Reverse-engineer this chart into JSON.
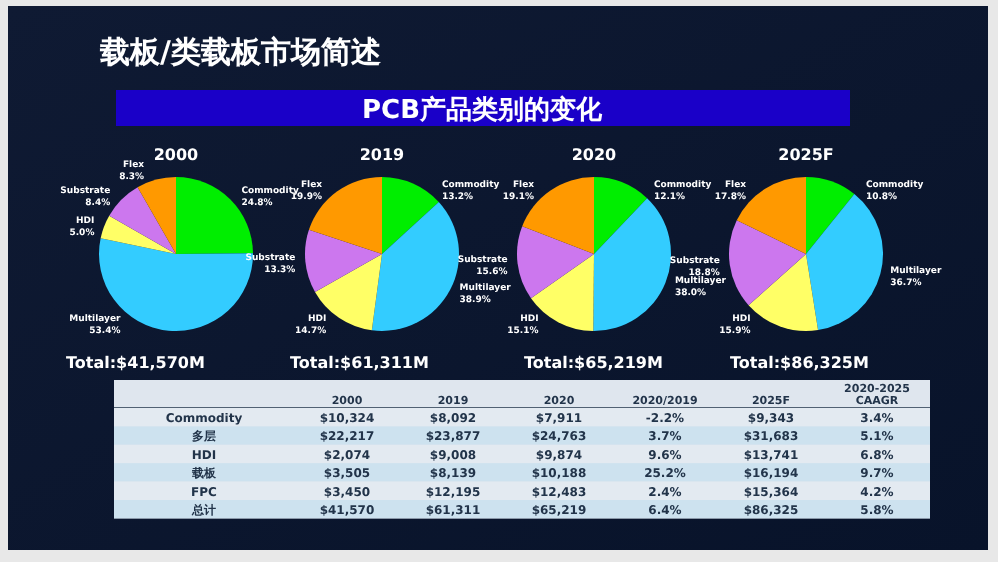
{
  "chart_data": [
    {
      "type": "other",
      "title": "载板/类载板市场简述",
      "subtitle": "PCB产品类别的变化"
    },
    {
      "type": "pie",
      "title": "2000",
      "categories": [
        "Commodity",
        "Multilayer",
        "HDI",
        "Substrate",
        "Flex"
      ],
      "values": [
        24.8,
        53.4,
        5.0,
        8.4,
        8.3
      ],
      "colors": [
        "#00ee00",
        "#33ccff",
        "#ffff66",
        "#cc77ee",
        "#ff9900"
      ],
      "value_labels": [
        "24.8%",
        "53.4%",
        "5.0%",
        "8.4%",
        "8.3%"
      ],
      "annotations": [
        "Total:$41,570M"
      ]
    },
    {
      "type": "pie",
      "title": "2019",
      "categories": [
        "Commodity",
        "Multilayer",
        "HDI",
        "Substrate",
        "Flex"
      ],
      "values": [
        13.2,
        38.9,
        14.7,
        13.3,
        19.9
      ],
      "colors": [
        "#00ee00",
        "#33ccff",
        "#ffff66",
        "#cc77ee",
        "#ff9900"
      ],
      "value_labels": [
        "13.2%",
        "38.9%",
        "14.7%",
        "13.3%",
        "19.9%"
      ],
      "annotations": [
        "Total:$61,311M"
      ]
    },
    {
      "type": "pie",
      "title": "2020",
      "categories": [
        "Commodity",
        "Multilayer",
        "HDI",
        "Substrate",
        "Flex"
      ],
      "values": [
        12.1,
        38.0,
        15.1,
        15.6,
        19.1
      ],
      "colors": [
        "#00ee00",
        "#33ccff",
        "#ffff66",
        "#cc77ee",
        "#ff9900"
      ],
      "value_labels": [
        "12.1%",
        "38.0%",
        "15.1%",
        "15.6%",
        "19.1%"
      ],
      "annotations": [
        "Total:$65,219M"
      ]
    },
    {
      "type": "pie",
      "title": "2025F",
      "categories": [
        "Commodity",
        "Multilayer",
        "HDI",
        "Substrate",
        "Flex"
      ],
      "values": [
        10.8,
        36.7,
        15.9,
        18.8,
        17.8
      ],
      "colors": [
        "#00ee00",
        "#33ccff",
        "#ffff66",
        "#cc77ee",
        "#ff9900"
      ],
      "value_labels": [
        "10.8%",
        "36.7%",
        "15.9%",
        "18.8%",
        "17.8%"
      ],
      "annotations": [
        "Total:$86,325M"
      ]
    },
    {
      "type": "other",
      "categories": [
        null,
        "2000",
        "2019",
        "2020",
        "2020/2019",
        "2025F",
        "2020-2025 CAAGR"
      ],
      "y_categories": [
        "Commodity",
        "多层",
        "HDI",
        "载板",
        "FPC",
        "总计"
      ],
      "annotations": [
        "$10,324",
        "$8,092",
        "$7,911",
        "-2.2%",
        "$9,343",
        "3.4%",
        "$22,217",
        "$23,877",
        "$24,763",
        "3.7%",
        "$31,683",
        "5.1%",
        "$2,074",
        "$9,008",
        "$9,874",
        "9.6%",
        "$13,741",
        "6.8%",
        "$3,505",
        "$8,139",
        "$10,188",
        "25.2%",
        "$16,194",
        "9.7%",
        "$3,450",
        "$12,195",
        "$12,483",
        "2.4%",
        "$15,364",
        "4.2%",
        "$41,570",
        "$61,311",
        "$65,219",
        "6.4%",
        "$86,325",
        "5.8%"
      ]
    }
  ]
}
